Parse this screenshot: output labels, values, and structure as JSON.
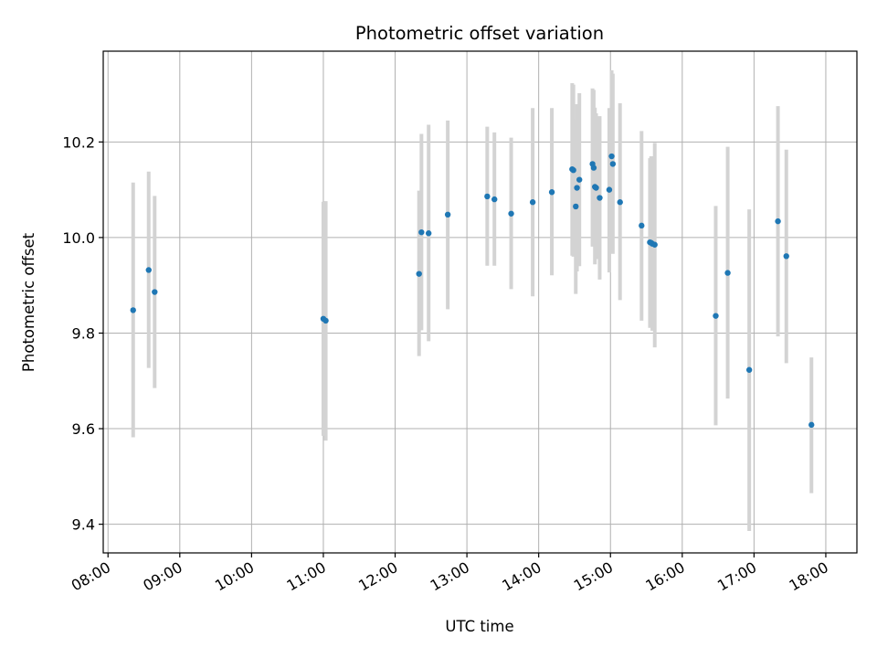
{
  "chart_data": {
    "type": "scatter",
    "title": "Photometric offset variation",
    "xlabel": "UTC time",
    "ylabel": "Photometric offset",
    "x_ticks": [
      "08:00",
      "09:00",
      "10:00",
      "11:00",
      "12:00",
      "13:00",
      "14:00",
      "15:00",
      "16:00",
      "17:00",
      "18:00"
    ],
    "y_ticks": [
      "9.4",
      "9.6",
      "9.8",
      "10.0",
      "10.2"
    ],
    "xlim": [
      "07:56",
      "18:26"
    ],
    "ylim": [
      9.34,
      10.39
    ],
    "grid": true,
    "point_color": "#1f77b4",
    "errorbar_color": "#d3d3d3",
    "points": [
      {
        "x": "08:21",
        "y": 9.848,
        "ylo": 9.582,
        "yhi": 10.115
      },
      {
        "x": "08:34",
        "y": 9.932,
        "ylo": 9.727,
        "yhi": 10.138
      },
      {
        "x": "08:39",
        "y": 9.886,
        "ylo": 9.685,
        "yhi": 10.087
      },
      {
        "x": "11:00",
        "y": 9.83,
        "ylo": 9.585,
        "yhi": 10.075
      },
      {
        "x": "11:02",
        "y": 9.826,
        "ylo": 9.575,
        "yhi": 10.076
      },
      {
        "x": "12:20",
        "y": 9.924,
        "ylo": 9.752,
        "yhi": 10.098
      },
      {
        "x": "12:22",
        "y": 10.011,
        "ylo": 9.806,
        "yhi": 10.217
      },
      {
        "x": "12:28",
        "y": 10.009,
        "ylo": 9.783,
        "yhi": 10.236
      },
      {
        "x": "12:44",
        "y": 10.048,
        "ylo": 9.85,
        "yhi": 10.245
      },
      {
        "x": "13:17",
        "y": 10.086,
        "ylo": 9.941,
        "yhi": 10.232
      },
      {
        "x": "13:23",
        "y": 10.08,
        "ylo": 9.941,
        "yhi": 10.22
      },
      {
        "x": "13:37",
        "y": 10.05,
        "ylo": 9.892,
        "yhi": 10.209
      },
      {
        "x": "13:55",
        "y": 10.074,
        "ylo": 9.877,
        "yhi": 10.271
      },
      {
        "x": "14:11",
        "y": 10.095,
        "ylo": 9.921,
        "yhi": 10.271
      },
      {
        "x": "14:28",
        "y": 10.143,
        "ylo": 9.962,
        "yhi": 10.323
      },
      {
        "x": "14:29",
        "y": 10.141,
        "ylo": 9.96,
        "yhi": 10.32
      },
      {
        "x": "14:31",
        "y": 10.065,
        "ylo": 9.882,
        "yhi": 10.248
      },
      {
        "x": "14:32",
        "y": 10.104,
        "ylo": 9.929,
        "yhi": 10.279
      },
      {
        "x": "14:34",
        "y": 10.121,
        "ylo": 9.94,
        "yhi": 10.302
      },
      {
        "x": "14:45",
        "y": 10.154,
        "ylo": 9.981,
        "yhi": 10.312
      },
      {
        "x": "14:46",
        "y": 10.146,
        "ylo": 9.983,
        "yhi": 10.309
      },
      {
        "x": "14:47",
        "y": 10.106,
        "ylo": 9.944,
        "yhi": 10.272
      },
      {
        "x": "14:48",
        "y": 10.104,
        "ylo": 9.955,
        "yhi": 10.26
      },
      {
        "x": "14:51",
        "y": 10.083,
        "ylo": 9.912,
        "yhi": 10.254
      },
      {
        "x": "14:59",
        "y": 10.1,
        "ylo": 9.927,
        "yhi": 10.271
      },
      {
        "x": "15:01",
        "y": 10.17,
        "ylo": 9.98,
        "yhi": 10.35
      },
      {
        "x": "15:02",
        "y": 10.154,
        "ylo": 9.966,
        "yhi": 10.343
      },
      {
        "x": "15:08",
        "y": 10.074,
        "ylo": 9.869,
        "yhi": 10.281
      },
      {
        "x": "15:26",
        "y": 10.025,
        "ylo": 9.826,
        "yhi": 10.223
      },
      {
        "x": "15:33",
        "y": 9.99,
        "ylo": 9.811,
        "yhi": 10.166
      },
      {
        "x": "15:34",
        "y": 9.989,
        "ylo": 9.815,
        "yhi": 10.17
      },
      {
        "x": "15:35",
        "y": 9.987,
        "ylo": 9.805,
        "yhi": 10.17
      },
      {
        "x": "15:37",
        "y": 9.985,
        "ylo": 9.77,
        "yhi": 10.198
      },
      {
        "x": "16:28",
        "y": 9.836,
        "ylo": 9.607,
        "yhi": 10.066
      },
      {
        "x": "16:38",
        "y": 9.926,
        "ylo": 9.663,
        "yhi": 10.19
      },
      {
        "x": "16:56",
        "y": 9.723,
        "ylo": 9.386,
        "yhi": 10.059
      },
      {
        "x": "17:20",
        "y": 10.034,
        "ylo": 9.793,
        "yhi": 10.275
      },
      {
        "x": "17:27",
        "y": 9.961,
        "ylo": 9.737,
        "yhi": 10.184
      },
      {
        "x": "17:48",
        "y": 9.608,
        "ylo": 9.465,
        "yhi": 9.749
      }
    ]
  }
}
